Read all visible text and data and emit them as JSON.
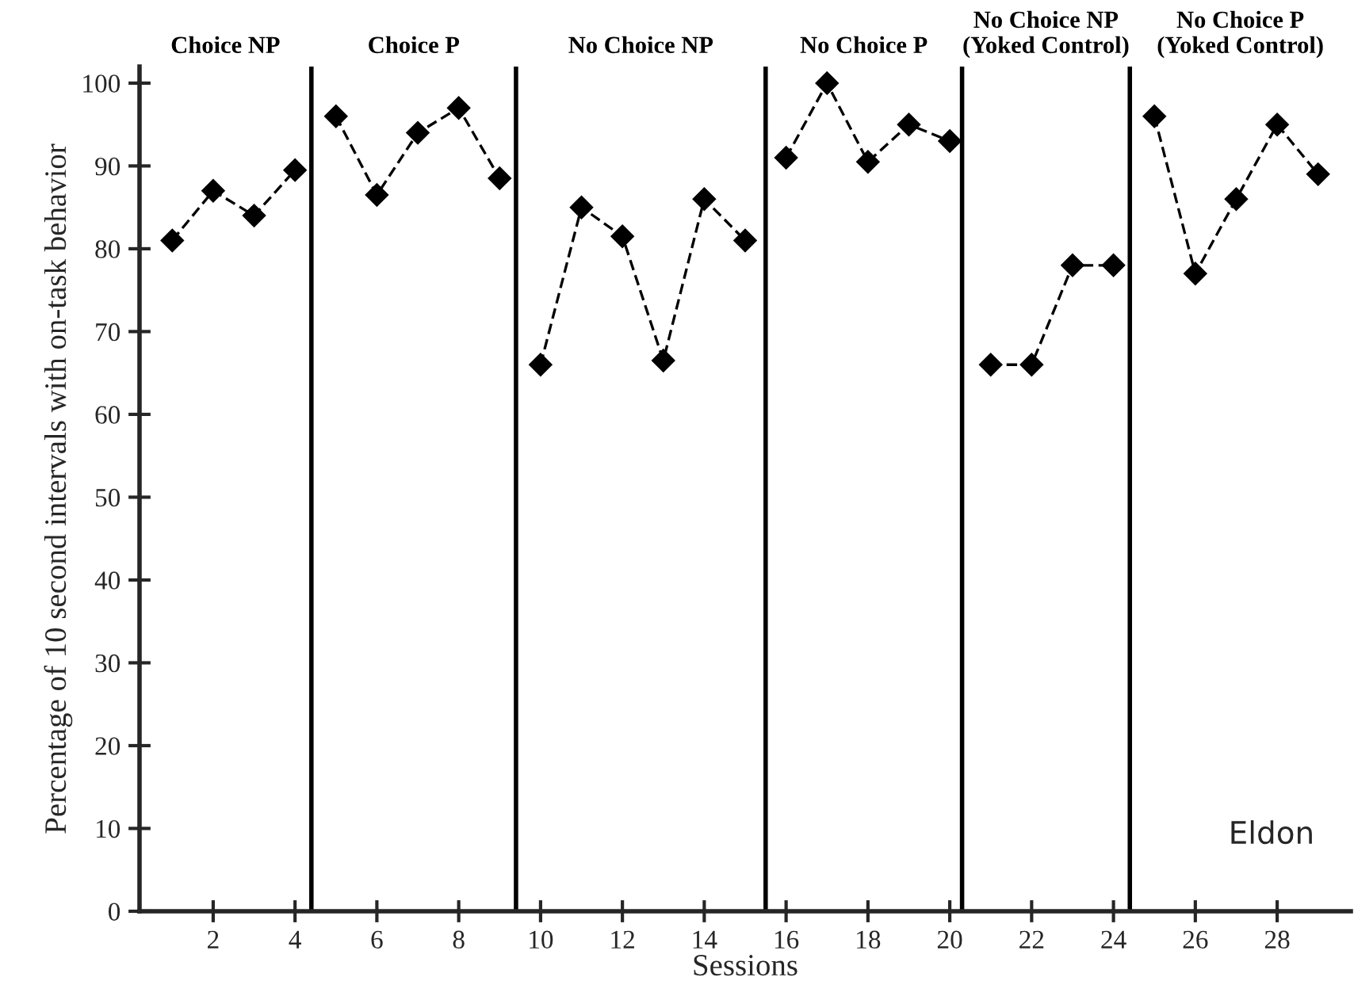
{
  "chart_data": {
    "type": "line",
    "xlabel": "Sessions",
    "ylabel": "Percentage of 10 second intervals with on-task behavior",
    "xlim": [
      0.2,
      29.8
    ],
    "xticks": [
      2,
      4,
      6,
      8,
      10,
      12,
      14,
      16,
      18,
      20,
      22,
      24,
      26,
      28
    ],
    "ylim": [
      0,
      102
    ],
    "yticks": [
      0,
      10,
      20,
      30,
      40,
      50,
      60,
      70,
      80,
      90,
      100
    ],
    "marker": "diamond",
    "line_style": "dashed",
    "grid": false,
    "legend": false,
    "series": [
      {
        "color": "#000000",
        "x": [
          1,
          2,
          3,
          4
        ],
        "values": [
          81,
          87,
          84,
          89.5
        ]
      },
      {
        "color": "#000000",
        "x": [
          5,
          6,
          7,
          8,
          9
        ],
        "values": [
          96,
          86.5,
          94,
          97,
          88.5
        ]
      },
      {
        "color": "#000000",
        "x": [
          10,
          11,
          12,
          13,
          14,
          15
        ],
        "values": [
          66,
          85,
          81.5,
          66.5,
          86,
          81
        ]
      },
      {
        "color": "#000000",
        "x": [
          16,
          17,
          18,
          19,
          20
        ],
        "values": [
          91,
          100,
          90.5,
          95,
          93
        ]
      },
      {
        "color": "#000000",
        "x": [
          21,
          22,
          23,
          24
        ],
        "values": [
          66,
          66,
          78,
          78
        ]
      },
      {
        "color": "#000000",
        "x": [
          25,
          26,
          27,
          28,
          29
        ],
        "values": [
          96,
          77,
          86,
          95,
          89
        ]
      }
    ],
    "ref_lines": [
      {
        "axis": "x",
        "value": 4.4,
        "color": "#000000",
        "line_style": "solid"
      },
      {
        "axis": "x",
        "value": 9.4,
        "color": "#000000",
        "line_style": "solid"
      },
      {
        "axis": "x",
        "value": 15.5,
        "color": "#000000",
        "line_style": "solid"
      },
      {
        "axis": "x",
        "value": 20.3,
        "color": "#000000",
        "line_style": "solid"
      },
      {
        "axis": "x",
        "value": 24.4,
        "color": "#000000",
        "line_style": "solid"
      }
    ],
    "annotations": [
      "Choice NP",
      "Choice P",
      "No Choice NP",
      "No Choice P",
      "No Choice NP\n(Yoked Control)",
      "No Choice P\n(Yoked Control)",
      "Eldon"
    ]
  }
}
